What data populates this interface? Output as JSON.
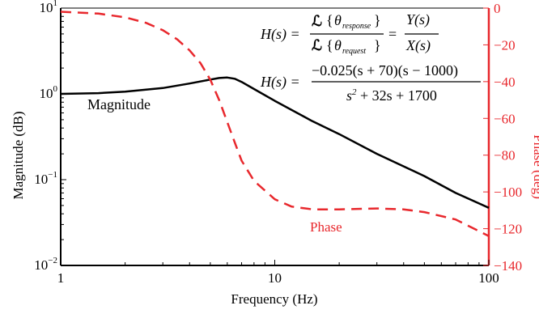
{
  "chart_data": {
    "type": "line",
    "x_axis": {
      "label": "Frequency (Hz)",
      "scale": "log",
      "range": [
        1,
        100
      ],
      "ticks": [
        {
          "value": 1,
          "label": "1"
        },
        {
          "value": 10,
          "label": "10"
        },
        {
          "value": 100,
          "label": "100"
        }
      ]
    },
    "y_left": {
      "label": "Magnitude (dB)",
      "scale": "log",
      "range": [
        0.01,
        10
      ],
      "ticks": [
        {
          "value": 10,
          "base": "10",
          "exp": "1"
        },
        {
          "value": 1,
          "base": "10",
          "exp": "0"
        },
        {
          "value": 0.1,
          "base": "10",
          "exp": "−1"
        },
        {
          "value": 0.01,
          "base": "10",
          "exp": "−2"
        }
      ]
    },
    "y_right": {
      "label": "Phase (deg)",
      "scale": "linear",
      "range": [
        -140,
        0
      ],
      "ticks": [
        "0",
        "−20",
        "−40",
        "−60",
        "−80",
        "−100",
        "−120",
        "−140"
      ],
      "tick_values": [
        0,
        -20,
        -40,
        -60,
        -80,
        -100,
        -120,
        -140
      ]
    },
    "series": [
      {
        "name": "Magnitude",
        "axis": "left",
        "color": "#000000",
        "style": "solid",
        "x": [
          1,
          1.5,
          2,
          3,
          4,
          5,
          5.5,
          6,
          6.5,
          7,
          8,
          10,
          15,
          20,
          30,
          50,
          70,
          100
        ],
        "y": [
          1.0,
          1.02,
          1.06,
          1.17,
          1.32,
          1.47,
          1.53,
          1.55,
          1.5,
          1.38,
          1.14,
          0.83,
          0.48,
          0.34,
          0.2,
          0.11,
          0.07,
          0.047
        ]
      },
      {
        "name": "Phase",
        "axis": "right",
        "color": "#e8282d",
        "style": "dashed",
        "x": [
          1,
          1.5,
          2,
          2.5,
          3,
          3.5,
          4,
          4.5,
          5,
          5.5,
          6,
          6.5,
          7,
          8,
          10,
          12,
          15,
          20,
          30,
          40,
          50,
          70,
          100
        ],
        "y": [
          -2,
          -3,
          -5,
          -8,
          -12,
          -17,
          -23,
          -30,
          -39,
          -50,
          -62,
          -73,
          -83,
          -94,
          -104,
          -108,
          -109.5,
          -109.5,
          -109,
          -109.5,
          -111,
          -115,
          -124
        ]
      }
    ],
    "annotations": [
      {
        "text": "Magnitude",
        "color": "#000000"
      },
      {
        "text": "Phase",
        "color": "#e8282d"
      }
    ],
    "equations": {
      "eq1_lhs": "H(s) =",
      "eq1_num_op": "ℒ",
      "eq1_num_sub": "response",
      "eq1_den_op": "ℒ",
      "eq1_den_sub": "request",
      "theta": "θ",
      "eq1_mid": "=",
      "eq1_rhs_num": "Y(s)",
      "eq1_rhs_den": "X(s)",
      "eq2_lhs": "H(s) =",
      "eq2_num": "−0.025(s + 70)(s − 1000)",
      "eq2_den_s": "s",
      "eq2_den_sup": "2",
      "eq2_den_rest": " + 32s + 1700"
    },
    "grid": false,
    "legend": "none"
  }
}
